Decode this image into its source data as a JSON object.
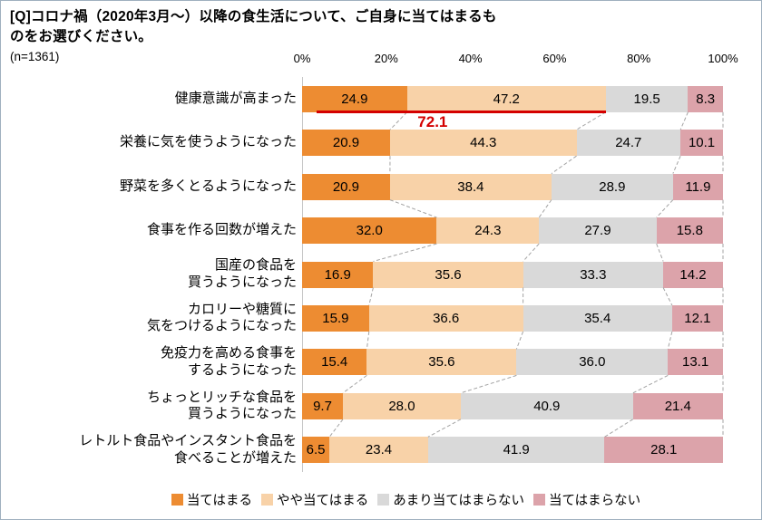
{
  "chart_data": {
    "type": "bar",
    "variant": "horizontal-stacked-100pct",
    "title": "[Q]コロナ禍（2020年3月～）以降の食生活について、ご自身に当てはまるものをお選びください。",
    "sample": "(n=1361)",
    "x_axis": {
      "min": 0,
      "max": 100,
      "ticks": [
        "0%",
        "20%",
        "40%",
        "60%",
        "80%",
        "100%"
      ],
      "position": "top"
    },
    "categories": [
      "健康意識が高まった",
      "栄養に気を使うようになった",
      "野菜を多くとるようになった",
      "食事を作る回数が増えた",
      "国産の食品を\n買うようになった",
      "カロリーや糖質に\n気をつけるようになった",
      "免疫力を高める食事を\nするようになった",
      "ちょっとリッチな食品を\n買うようになった",
      "レトルト食品やインスタント食品を\n食べることが増えた"
    ],
    "series": [
      {
        "name": "当てはまる",
        "color": "#ED8C32",
        "values": [
          24.9,
          20.9,
          20.9,
          32.0,
          16.9,
          15.9,
          15.4,
          9.7,
          6.5
        ]
      },
      {
        "name": "やや当てはまる",
        "color": "#F8D2A8",
        "values": [
          47.2,
          44.3,
          38.4,
          24.3,
          35.6,
          36.6,
          35.6,
          28.0,
          23.4
        ]
      },
      {
        "name": "あまり当てはまらない",
        "color": "#D9D9D9",
        "values": [
          19.5,
          24.7,
          28.9,
          27.9,
          33.3,
          35.4,
          36.0,
          40.9,
          41.9
        ]
      },
      {
        "name": "当てはまらない",
        "color": "#DCA3AA",
        "values": [
          8.3,
          10.1,
          11.9,
          15.8,
          14.2,
          12.1,
          13.1,
          21.4,
          28.1
        ]
      }
    ],
    "annotation": {
      "row_index": 0,
      "label": "72.1",
      "value": 72.1,
      "color": "#D40000"
    },
    "connector_lines": true,
    "grid": false,
    "legend_position": "bottom"
  }
}
